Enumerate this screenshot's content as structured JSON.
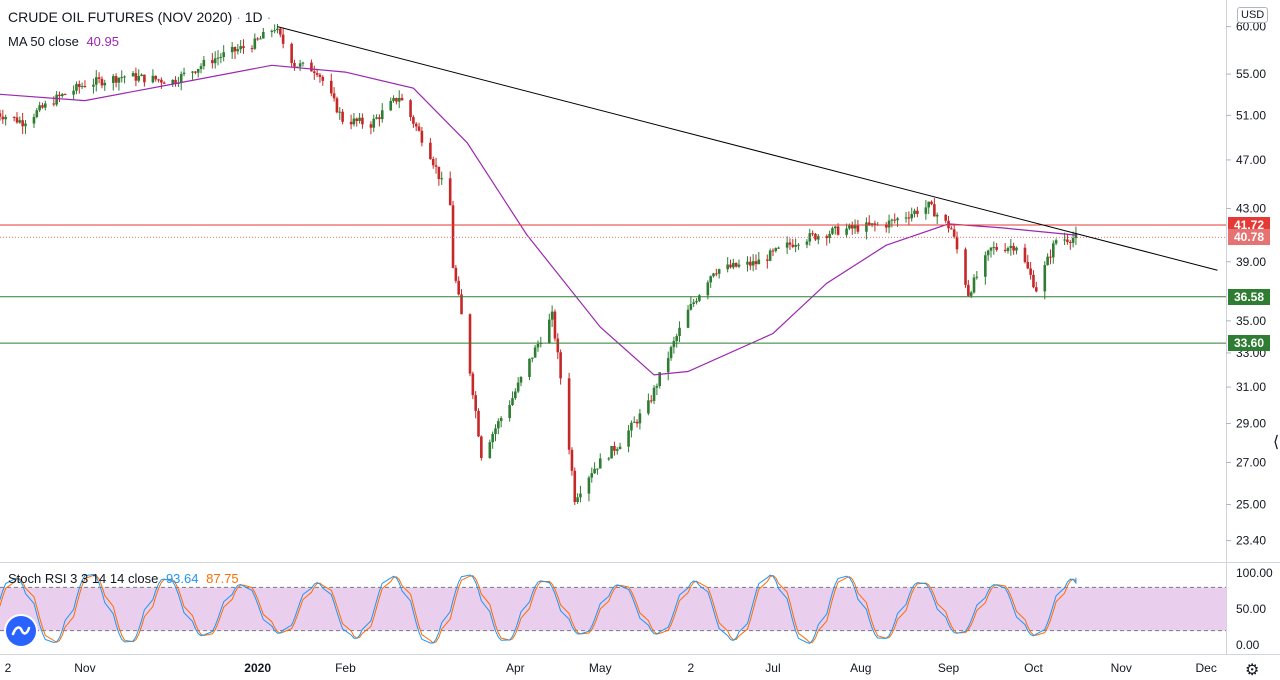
{
  "header": {
    "symbol": "CRUDE OIL FUTURES (NOV 2020)",
    "interval": "1D",
    "separator": "·",
    "ma_label": "MA 50 close",
    "ma_value": "40.95",
    "stoch_label": "Stoch RSI 3 3 14 14 close",
    "stoch_k": "93.64",
    "stoch_d": "87.75",
    "currency": "USD"
  },
  "colors": {
    "up": "#26a69a",
    "up_body": "#2e7d32",
    "down": "#c62828",
    "ma": "#9c27b0",
    "stoch_k": "#2196f3",
    "stoch_d": "#ff6d00",
    "band": "#e1bee7",
    "resistance": "#e53935",
    "support": "#2e7d32",
    "trendline": "#000000"
  },
  "icons": [
    "tradingview-logo-icon",
    "settings-gear-icon",
    "drag-handle-icon"
  ],
  "chart_data": [
    {
      "type": "line",
      "subtype": "candlestick",
      "title": "CRUDE OIL FUTURES (NOV 2020) · 1D",
      "ylim": [
        22.5,
        63
      ],
      "y_scale": "log",
      "price_ticks": [
        "60.00",
        "55.00",
        "51.00",
        "47.00",
        "43.00",
        "39.00",
        "35.00",
        "33.00",
        "31.00",
        "29.00",
        "27.00",
        "25.00",
        "23.40"
      ],
      "x_ticks": [
        "2",
        "Nov",
        "2020",
        "Feb",
        "Apr",
        "May",
        "2",
        "Jul",
        "Aug",
        "Sep",
        "Oct",
        "Nov",
        "Dec"
      ],
      "x_range": [
        "2019-10-02",
        "2020-12-08"
      ],
      "ohlc_anchors": [
        {
          "date": "2019-10-01",
          "close": 51.2
        },
        {
          "date": "2019-10-10",
          "close": 50.4
        },
        {
          "date": "2019-10-22",
          "close": 52.6
        },
        {
          "date": "2019-11-01",
          "close": 54.0
        },
        {
          "date": "2019-11-15",
          "close": 54.8
        },
        {
          "date": "2019-12-02",
          "close": 54.3
        },
        {
          "date": "2019-12-16",
          "close": 56.5
        },
        {
          "date": "2019-12-31",
          "close": 58.2
        },
        {
          "date": "2020-01-07",
          "close": 59.9
        },
        {
          "date": "2020-01-14",
          "close": 56.0
        },
        {
          "date": "2020-01-22",
          "close": 55.4
        },
        {
          "date": "2020-01-31",
          "close": 50.6
        },
        {
          "date": "2020-02-10",
          "close": 50.2
        },
        {
          "date": "2020-02-20",
          "close": 52.8
        },
        {
          "date": "2020-03-02",
          "close": 47.5
        },
        {
          "date": "2020-03-09",
          "close": 43.2
        },
        {
          "date": "2020-03-10",
          "close": 38.7
        },
        {
          "date": "2020-03-20",
          "close": 27.4
        },
        {
          "date": "2020-03-31",
          "close": 30.4
        },
        {
          "date": "2020-04-14",
          "close": 35.3
        },
        {
          "date": "2020-04-22",
          "close": 25.3
        },
        {
          "date": "2020-04-28",
          "close": 26.6
        },
        {
          "date": "2020-05-08",
          "close": 28.0
        },
        {
          "date": "2020-05-18",
          "close": 30.0
        },
        {
          "date": "2020-06-01",
          "close": 35.6
        },
        {
          "date": "2020-06-10",
          "close": 38.4
        },
        {
          "date": "2020-06-25",
          "close": 38.9
        },
        {
          "date": "2020-07-10",
          "close": 40.6
        },
        {
          "date": "2020-07-24",
          "close": 41.3
        },
        {
          "date": "2020-08-10",
          "close": 41.8
        },
        {
          "date": "2020-08-25",
          "close": 43.2
        },
        {
          "date": "2020-09-02",
          "close": 41.4
        },
        {
          "date": "2020-09-08",
          "close": 36.8
        },
        {
          "date": "2020-09-16",
          "close": 39.9
        },
        {
          "date": "2020-09-25",
          "close": 40.2
        },
        {
          "date": "2020-10-02",
          "close": 37.1
        },
        {
          "date": "2020-10-09",
          "close": 40.6
        },
        {
          "date": "2020-10-16",
          "close": 40.78
        }
      ],
      "ma50_anchors": [
        {
          "date": "2019-10-02",
          "value": 53.0
        },
        {
          "date": "2019-11-01",
          "value": 52.4
        },
        {
          "date": "2019-12-02",
          "value": 54.0
        },
        {
          "date": "2020-01-06",
          "value": 55.9
        },
        {
          "date": "2020-02-01",
          "value": 55.2
        },
        {
          "date": "2020-02-25",
          "value": 53.6
        },
        {
          "date": "2020-03-15",
          "value": 48.5
        },
        {
          "date": "2020-04-05",
          "value": 41.0
        },
        {
          "date": "2020-05-01",
          "value": 34.6
        },
        {
          "date": "2020-05-20",
          "value": 31.7
        },
        {
          "date": "2020-06-01",
          "value": 31.9
        },
        {
          "date": "2020-07-01",
          "value": 34.2
        },
        {
          "date": "2020-07-20",
          "value": 37.5
        },
        {
          "date": "2020-08-10",
          "value": 40.2
        },
        {
          "date": "2020-09-01",
          "value": 41.8
        },
        {
          "date": "2020-09-20",
          "value": 41.5
        },
        {
          "date": "2020-10-16",
          "value": 40.95
        }
      ],
      "horizontal_levels": [
        {
          "price": 41.72,
          "label": "41.72",
          "color": "#e53935",
          "style": "solid"
        },
        {
          "price": 40.78,
          "label": "40.78",
          "color": "#e57373",
          "style": "dotted"
        },
        {
          "price": 36.58,
          "label": "36.58",
          "color": "#2e7d32",
          "style": "solid"
        },
        {
          "price": 33.6,
          "label": "33.60",
          "color": "#2e7d32",
          "style": "solid"
        }
      ],
      "trendline": {
        "from": {
          "date": "2020-01-08",
          "price": 60.0
        },
        "to": {
          "date": "2020-12-05",
          "price": 38.4
        }
      },
      "last_price": "40.78"
    },
    {
      "type": "line",
      "title": "Stoch RSI 3 3 14 14 close",
      "ylim": [
        0,
        100
      ],
      "y_ticks": [
        "100.00",
        "50.00",
        "0.00"
      ],
      "bands": [
        20,
        80
      ],
      "series": [
        {
          "name": "K",
          "last": 93.64
        },
        {
          "name": "D",
          "last": 87.75
        }
      ]
    }
  ]
}
